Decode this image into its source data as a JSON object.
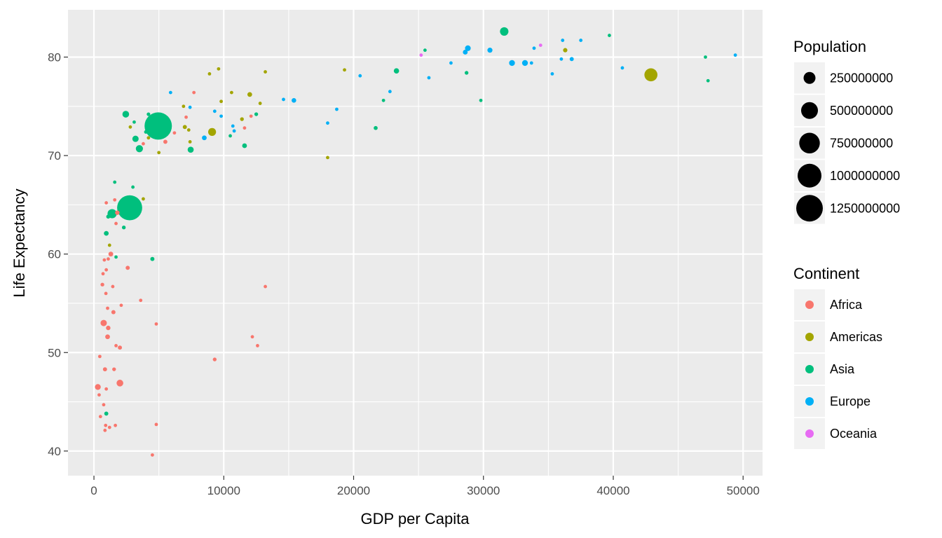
{
  "chart_data": {
    "type": "scatter",
    "title": "",
    "xlabel": "GDP per Capita",
    "ylabel": "Life Expectancy",
    "xlim": [
      -2000,
      51500
    ],
    "ylim": [
      37.5,
      84.8
    ],
    "x_ticks": [
      0,
      10000,
      20000,
      30000,
      40000,
      50000
    ],
    "x_tick_labels": [
      "0",
      "10000",
      "20000",
      "30000",
      "40000",
      "50000"
    ],
    "y_ticks": [
      40,
      50,
      60,
      70,
      80
    ],
    "y_tick_labels": [
      "40",
      "50",
      "60",
      "70",
      "80"
    ],
    "grid": true,
    "legend_position": "right",
    "size_legend": {
      "title": "Population",
      "entries": [
        {
          "label": "250000000",
          "value": 250000000
        },
        {
          "label": "500000000",
          "value": 500000000
        },
        {
          "label": "750000000",
          "value": 750000000
        },
        {
          "label": "1000000000",
          "value": 1000000000
        },
        {
          "label": "1250000000",
          "value": 1250000000
        }
      ]
    },
    "color_legend": {
      "title": "Continent",
      "entries": [
        {
          "label": "Africa",
          "color": "#F8766D"
        },
        {
          "label": "Americas",
          "color": "#A3A500"
        },
        {
          "label": "Asia",
          "color": "#00BF7D"
        },
        {
          "label": "Europe",
          "color": "#00B0F6"
        },
        {
          "label": "Oceania",
          "color": "#E76BF3"
        }
      ]
    },
    "series": [
      {
        "continent": "Africa",
        "color": "#F8766D",
        "points": [
          [
            300,
            46.5,
            60000000
          ],
          [
            400,
            45.7,
            10000000
          ],
          [
            450,
            49.6,
            12000000
          ],
          [
            500,
            43.5,
            15000000
          ],
          [
            650,
            56.9,
            25000000
          ],
          [
            700,
            58.0,
            10000000
          ],
          [
            750,
            53.0,
            70000000
          ],
          [
            750,
            44.7,
            8000000
          ],
          [
            800,
            59.4,
            15000000
          ],
          [
            850,
            48.3,
            30000000
          ],
          [
            850,
            42.1,
            20000000
          ],
          [
            900,
            42.6,
            12000000
          ],
          [
            920,
            56.0,
            10000000
          ],
          [
            950,
            46.3,
            8000000
          ],
          [
            950,
            58.4,
            5000000
          ],
          [
            950,
            65.2,
            3000000
          ],
          [
            1050,
            54.5,
            20000000
          ],
          [
            1050,
            51.6,
            40000000
          ],
          [
            1100,
            52.5,
            35000000
          ],
          [
            1100,
            59.5,
            12000000
          ],
          [
            1200,
            42.4,
            3000000
          ],
          [
            1300,
            60.0,
            40000000
          ],
          [
            1450,
            56.7,
            18000000
          ],
          [
            1500,
            54.1,
            30000000
          ],
          [
            1550,
            48.3,
            25000000
          ],
          [
            1600,
            65.5,
            3000000
          ],
          [
            1650,
            42.6,
            3000000
          ],
          [
            1700,
            50.7,
            20000000
          ],
          [
            1700,
            63.1,
            10000000
          ],
          [
            1800,
            64.2,
            35000000
          ],
          [
            2000,
            46.9,
            80000000
          ],
          [
            2000,
            50.5,
            30000000
          ],
          [
            2100,
            54.8,
            5000000
          ],
          [
            2600,
            58.6,
            30000000
          ],
          [
            3600,
            55.3,
            8000000
          ],
          [
            3800,
            71.2,
            10000000
          ],
          [
            4500,
            39.6,
            3000000
          ],
          [
            4800,
            42.7,
            15000000
          ],
          [
            4800,
            52.9,
            5000000
          ],
          [
            5500,
            71.4,
            30000000
          ],
          [
            6200,
            72.3,
            10000000
          ],
          [
            7100,
            73.9,
            5000000
          ],
          [
            7700,
            76.4,
            3000000
          ],
          [
            9300,
            49.3,
            25000000
          ],
          [
            11600,
            72.8,
            3000000
          ],
          [
            12100,
            74.0,
            5000000
          ],
          [
            12200,
            51.6,
            3000000
          ],
          [
            12600,
            50.7,
            3000000
          ],
          [
            13200,
            56.7,
            3000000
          ]
        ]
      },
      {
        "continent": "Americas",
        "color": "#A3A500",
        "points": [
          [
            1200,
            60.9,
            8000000
          ],
          [
            2800,
            72.9,
            5000000
          ],
          [
            3800,
            65.6,
            10000000
          ],
          [
            4200,
            71.8,
            10000000
          ],
          [
            5000,
            70.3,
            10000000
          ],
          [
            6900,
            75.0,
            6000000
          ],
          [
            7000,
            72.9,
            30000000
          ],
          [
            7300,
            72.6,
            3000000
          ],
          [
            7400,
            71.4,
            20000000
          ],
          [
            8900,
            78.3,
            4000000
          ],
          [
            9100,
            72.4,
            110000000
          ],
          [
            9600,
            78.8,
            4000000
          ],
          [
            9800,
            75.5,
            5000000
          ],
          [
            10600,
            76.4,
            3000000
          ],
          [
            11400,
            73.7,
            25000000
          ],
          [
            12000,
            76.2,
            40000000
          ],
          [
            12800,
            75.3,
            20000000
          ],
          [
            13200,
            78.5,
            10000000
          ],
          [
            18000,
            69.8,
            3000000
          ],
          [
            19300,
            78.7,
            5000000
          ],
          [
            36300,
            80.7,
            33000000
          ],
          [
            42900,
            78.2,
            301000000
          ]
        ]
      },
      {
        "continent": "Asia",
        "color": "#00BF7D",
        "points": [
          [
            950,
            43.8,
            30000000
          ],
          [
            950,
            62.1,
            40000000
          ],
          [
            1100,
            63.8,
            28000000
          ],
          [
            1400,
            64.1,
            150000000
          ],
          [
            1600,
            67.3,
            20000000
          ],
          [
            1700,
            59.7,
            20000000
          ],
          [
            2300,
            62.7,
            25000000
          ],
          [
            2450,
            74.2,
            80000000
          ],
          [
            2600,
            65.0,
            220000000
          ],
          [
            2750,
            64.7,
            1110000000
          ],
          [
            3000,
            66.8,
            5000000
          ],
          [
            3100,
            73.4,
            5000000
          ],
          [
            3200,
            71.7,
            70000000
          ],
          [
            3500,
            70.7,
            90000000
          ],
          [
            3600,
            70.6,
            10000000
          ],
          [
            4000,
            72.4,
            23000000
          ],
          [
            4200,
            74.2,
            23000000
          ],
          [
            4500,
            59.5,
            30000000
          ],
          [
            4950,
            73.0,
            1320000000
          ],
          [
            7450,
            70.6,
            65000000
          ],
          [
            10500,
            72.0,
            5000000
          ],
          [
            11600,
            71.0,
            40000000
          ],
          [
            12500,
            74.2,
            25000000
          ],
          [
            21700,
            72.8,
            28000000
          ],
          [
            22300,
            75.6,
            3000000
          ],
          [
            23300,
            78.6,
            50000000
          ],
          [
            25500,
            80.7,
            6000000
          ],
          [
            28700,
            78.4,
            25000000
          ],
          [
            29800,
            75.6,
            3000000
          ],
          [
            31600,
            82.6,
            127000000
          ],
          [
            39700,
            82.2,
            5000000
          ],
          [
            47100,
            80.0,
            5000000
          ],
          [
            47300,
            77.6,
            3000000
          ]
        ]
      },
      {
        "continent": "Europe",
        "color": "#00B0F6",
        "points": [
          [
            5900,
            76.4,
            5000000
          ],
          [
            7400,
            74.9,
            5000000
          ],
          [
            8500,
            71.8,
            40000000
          ],
          [
            9300,
            74.5,
            4000000
          ],
          [
            9800,
            74.0,
            10000000
          ],
          [
            10700,
            73.0,
            10000000
          ],
          [
            10800,
            72.5,
            10000000
          ],
          [
            14600,
            75.7,
            10000000
          ],
          [
            15400,
            75.6,
            38000000
          ],
          [
            18000,
            73.3,
            10000000
          ],
          [
            18700,
            74.7,
            10000000
          ],
          [
            20500,
            78.1,
            10000000
          ],
          [
            22800,
            76.5,
            10000000
          ],
          [
            25800,
            77.9,
            5000000
          ],
          [
            27500,
            79.4,
            10000000
          ],
          [
            28600,
            80.5,
            40000000
          ],
          [
            28800,
            80.9,
            58000000
          ],
          [
            30500,
            80.7,
            45000000
          ],
          [
            32200,
            79.4,
            61000000
          ],
          [
            33200,
            79.4,
            60000000
          ],
          [
            33700,
            79.4,
            10000000
          ],
          [
            33900,
            80.9,
            15000000
          ],
          [
            35300,
            78.3,
            10000000
          ],
          [
            36000,
            79.8,
            10000000
          ],
          [
            36100,
            81.7,
            4000000
          ],
          [
            36800,
            79.8,
            30000000
          ],
          [
            37500,
            81.7,
            10000000
          ],
          [
            40700,
            78.9,
            5000000
          ],
          [
            49400,
            80.2,
            10000000
          ]
        ]
      },
      {
        "continent": "Oceania",
        "color": "#E76BF3",
        "points": [
          [
            25200,
            80.2,
            5000000
          ],
          [
            34400,
            81.2,
            20000000
          ]
        ]
      }
    ]
  }
}
